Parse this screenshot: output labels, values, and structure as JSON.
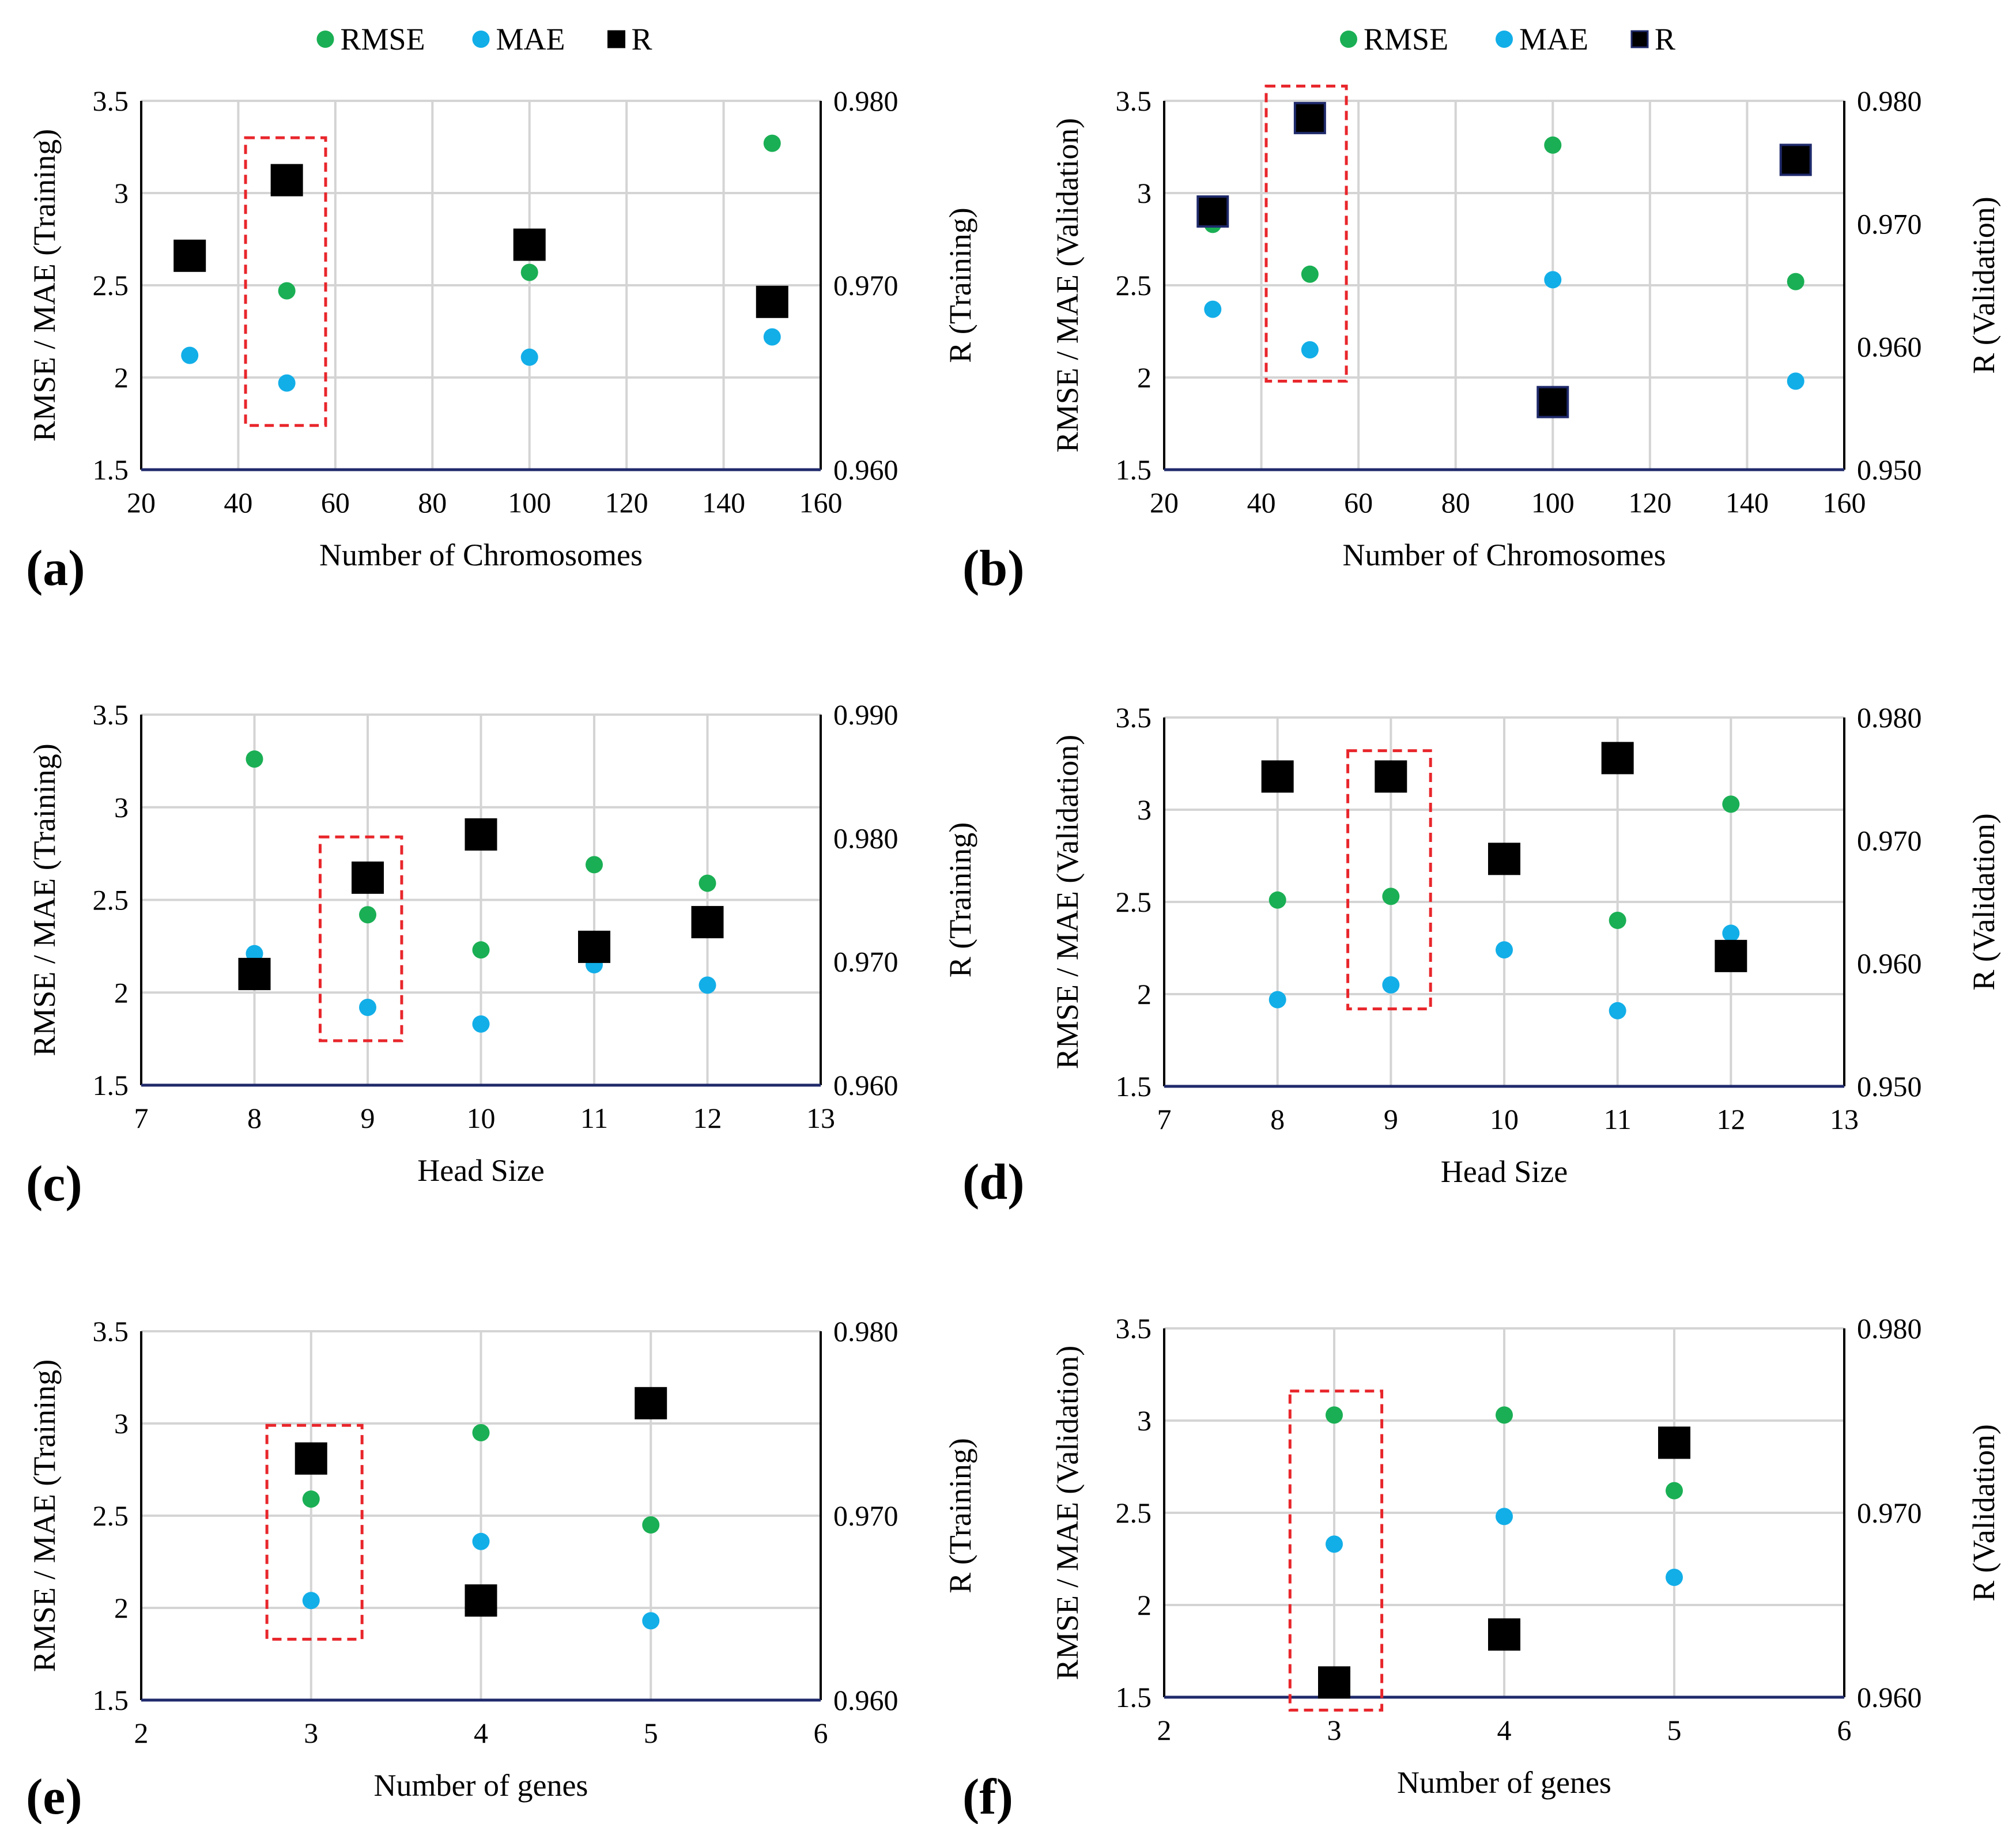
{
  "colors": {
    "rmse": "#1aaf54",
    "mae": "#12aee8",
    "r": "#000000",
    "r_marker_border": "#1f2a6b",
    "grid": "#d4d4d4",
    "x_axis": "#1f2a6b",
    "frame": "#000000",
    "highlight": "#e8262b"
  },
  "chart_data": [
    {
      "panel": "(a)",
      "type": "scatter",
      "legend": [
        "RMSE",
        "MAE",
        "R"
      ],
      "xlabel": "Number of Chromosomes",
      "ylabel": "RMSE / MAE (Training)",
      "y2label": "R (Training)",
      "xlim": [
        20,
        160
      ],
      "xticks": [
        20,
        40,
        60,
        80,
        100,
        120,
        140,
        160
      ],
      "ylim": [
        1.5,
        3.5
      ],
      "yticks": [
        1.5,
        2,
        2.5,
        3,
        3.5
      ],
      "y2lim": [
        0.96,
        0.98
      ],
      "y2ticks": [
        0.96,
        0.97,
        0.98
      ],
      "y2tick_labels": [
        "0.960",
        "0.970",
        "0.980"
      ],
      "series": [
        {
          "name": "RMSE",
          "axis": "left",
          "x": [
            30,
            50,
            100,
            150
          ],
          "y": [
            2.67,
            2.47,
            2.57,
            3.27
          ]
        },
        {
          "name": "MAE",
          "axis": "left",
          "x": [
            30,
            50,
            100,
            150
          ],
          "y": [
            2.12,
            1.97,
            2.11,
            2.22
          ]
        },
        {
          "name": "R",
          "axis": "right",
          "x": [
            30,
            50,
            100,
            150
          ],
          "y": [
            0.9716,
            0.9757,
            0.9722,
            0.9691
          ]
        }
      ],
      "highlight": {
        "x": [
          41.5,
          58
        ],
        "y": [
          1.74,
          3.3
        ]
      }
    },
    {
      "panel": "(b)",
      "type": "scatter",
      "legend": [
        "RMSE",
        "MAE",
        "R"
      ],
      "xlabel": "Number of Chromosomes",
      "ylabel": "RMSE / MAE (Validation)",
      "y2label": "R (Validation)",
      "xlim": [
        20,
        160
      ],
      "xticks": [
        20,
        40,
        60,
        80,
        100,
        120,
        140,
        160
      ],
      "ylim": [
        1.5,
        3.5
      ],
      "yticks": [
        1.5,
        2,
        2.5,
        3,
        3.5
      ],
      "y2lim": [
        0.95,
        0.98
      ],
      "y2ticks": [
        0.95,
        0.96,
        0.97,
        0.98
      ],
      "y2tick_labels": [
        "0.950",
        "0.960",
        "0.970",
        "0.980"
      ],
      "series": [
        {
          "name": "RMSE",
          "axis": "left",
          "x": [
            30,
            50,
            100,
            150
          ],
          "y": [
            2.83,
            2.56,
            3.26,
            2.52
          ]
        },
        {
          "name": "MAE",
          "axis": "left",
          "x": [
            30,
            50,
            100,
            150
          ],
          "y": [
            2.37,
            2.15,
            2.53,
            1.98
          ]
        },
        {
          "name": "R",
          "axis": "right",
          "x": [
            30,
            50,
            100,
            150
          ],
          "y": [
            0.971,
            0.9786,
            0.9555,
            0.9752
          ]
        }
      ],
      "highlight": {
        "x": [
          41,
          57.5
        ],
        "y": [
          1.98,
          3.58
        ]
      }
    },
    {
      "panel": "(c)",
      "type": "scatter",
      "xlabel": "Head Size",
      "ylabel": "RMSE / MAE (Training)",
      "y2label": "R (Training)",
      "xlim": [
        7,
        13
      ],
      "xticks": [
        7,
        8,
        9,
        10,
        11,
        12,
        13
      ],
      "ylim": [
        1.5,
        3.5
      ],
      "yticks": [
        1.5,
        2,
        2.5,
        3,
        3.5
      ],
      "y2lim": [
        0.96,
        0.99
      ],
      "y2ticks": [
        0.96,
        0.97,
        0.98,
        0.99
      ],
      "y2tick_labels": [
        "0.960",
        "0.970",
        "0.980",
        "0.990"
      ],
      "series": [
        {
          "name": "RMSE",
          "axis": "left",
          "x": [
            8,
            9,
            10,
            11,
            12
          ],
          "y": [
            3.26,
            2.42,
            2.23,
            2.69,
            2.59
          ]
        },
        {
          "name": "MAE",
          "axis": "left",
          "x": [
            8,
            9,
            10,
            11,
            12
          ],
          "y": [
            2.21,
            1.92,
            1.83,
            2.15,
            2.04
          ]
        },
        {
          "name": "R",
          "axis": "right",
          "x": [
            8,
            9,
            10,
            11,
            12
          ],
          "y": [
            0.969,
            0.9768,
            0.9803,
            0.9712,
            0.9732
          ]
        }
      ],
      "highlight": {
        "x": [
          8.58,
          9.3
        ],
        "y": [
          1.74,
          2.84
        ]
      }
    },
    {
      "panel": "(d)",
      "type": "scatter",
      "xlabel": "Head Size",
      "ylabel": "RMSE / MAE (Validation)",
      "y2label": "R (Validation)",
      "xlim": [
        7,
        13
      ],
      "xticks": [
        7,
        8,
        9,
        10,
        11,
        12,
        13
      ],
      "ylim": [
        1.5,
        3.5
      ],
      "yticks": [
        1.5,
        2,
        2.5,
        3,
        3.5
      ],
      "y2lim": [
        0.95,
        0.98
      ],
      "y2ticks": [
        0.95,
        0.96,
        0.97,
        0.98
      ],
      "y2tick_labels": [
        "0.950",
        "0.960",
        "0.970",
        "0.980"
      ],
      "series": [
        {
          "name": "RMSE",
          "axis": "left",
          "x": [
            8,
            9,
            10,
            11,
            12
          ],
          "y": [
            2.51,
            2.53,
            2.71,
            2.4,
            3.03
          ]
        },
        {
          "name": "MAE",
          "axis": "left",
          "x": [
            8,
            9,
            10,
            11,
            12
          ],
          "y": [
            1.97,
            2.05,
            2.24,
            1.91,
            2.33
          ]
        },
        {
          "name": "R",
          "axis": "right",
          "x": [
            8,
            9,
            10,
            11,
            12
          ],
          "y": [
            0.9752,
            0.9752,
            0.9685,
            0.9767,
            0.9606
          ]
        }
      ],
      "highlight": {
        "x": [
          8.62,
          9.35
        ],
        "y": [
          1.92,
          3.32
        ]
      }
    },
    {
      "panel": "(e)",
      "type": "scatter",
      "xlabel": "Number of genes",
      "ylabel": "RMSE / MAE (Training)",
      "y2label": "R (Training)",
      "xlim": [
        2,
        6
      ],
      "xticks": [
        2,
        3,
        4,
        5,
        6
      ],
      "ylim": [
        1.5,
        3.5
      ],
      "yticks": [
        1.5,
        2,
        2.5,
        3,
        3.5
      ],
      "y2lim": [
        0.96,
        0.98
      ],
      "y2ticks": [
        0.96,
        0.97,
        0.98
      ],
      "y2tick_labels": [
        "0.960",
        "0.970",
        "0.980"
      ],
      "series": [
        {
          "name": "RMSE",
          "axis": "left",
          "x": [
            3,
            4,
            5
          ],
          "y": [
            2.59,
            2.95,
            2.45
          ]
        },
        {
          "name": "MAE",
          "axis": "left",
          "x": [
            3,
            4,
            5
          ],
          "y": [
            2.04,
            2.36,
            1.93
          ]
        },
        {
          "name": "R",
          "axis": "right",
          "x": [
            3,
            4,
            5
          ],
          "y": [
            0.9731,
            0.9654,
            0.9761
          ]
        }
      ],
      "highlight": {
        "x": [
          2.74,
          3.3
        ],
        "y": [
          1.83,
          2.99
        ]
      }
    },
    {
      "panel": "(f)",
      "type": "scatter",
      "xlabel": "Number of genes",
      "ylabel": "RMSE / MAE (Validation)",
      "y2label": "R (Validation)",
      "xlim": [
        2,
        6
      ],
      "xticks": [
        2,
        3,
        4,
        5,
        6
      ],
      "ylim": [
        1.5,
        3.5
      ],
      "yticks": [
        1.5,
        2,
        2.5,
        3,
        3.5
      ],
      "y2lim": [
        0.96,
        0.98
      ],
      "y2ticks": [
        0.96,
        0.97,
        0.98
      ],
      "y2tick_labels": [
        "0.960",
        "0.970",
        "0.980"
      ],
      "series": [
        {
          "name": "RMSE",
          "axis": "left",
          "x": [
            3,
            4,
            5
          ],
          "y": [
            3.03,
            3.03,
            2.62
          ]
        },
        {
          "name": "MAE",
          "axis": "left",
          "x": [
            3,
            4,
            5
          ],
          "y": [
            2.33,
            2.48,
            2.15
          ]
        },
        {
          "name": "R",
          "axis": "right",
          "x": [
            3,
            4,
            5
          ],
          "y": [
            0.9608,
            0.9634,
            0.9738
          ]
        }
      ],
      "highlight": {
        "x": [
          2.74,
          3.28
        ],
        "y": [
          1.43,
          3.16
        ]
      }
    }
  ]
}
